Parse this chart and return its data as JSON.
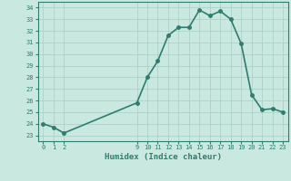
{
  "x": [
    0,
    1,
    2,
    9,
    10,
    11,
    12,
    13,
    14,
    15,
    16,
    17,
    18,
    19,
    20,
    21,
    22,
    23
  ],
  "y": [
    24.0,
    23.7,
    23.2,
    25.8,
    28.0,
    29.4,
    31.6,
    32.3,
    32.3,
    33.8,
    33.3,
    33.7,
    33.0,
    30.9,
    26.5,
    25.2,
    25.3,
    25.0
  ],
  "xlabel": "Humidex (Indice chaleur)",
  "ylabel_ticks": [
    23,
    24,
    25,
    26,
    27,
    28,
    29,
    30,
    31,
    32,
    33,
    34
  ],
  "xticks": [
    0,
    1,
    2,
    9,
    10,
    11,
    12,
    13,
    14,
    15,
    16,
    17,
    18,
    19,
    20,
    21,
    22,
    23
  ],
  "ylim": [
    22.5,
    34.5
  ],
  "xlim": [
    -0.5,
    23.5
  ],
  "line_color": "#2e7d6e",
  "bg_color": "#c8e8e0",
  "grid_color": "#a8ccc5",
  "tick_color": "#2e7d6e",
  "marker_size": 2.5,
  "line_width": 1.2
}
